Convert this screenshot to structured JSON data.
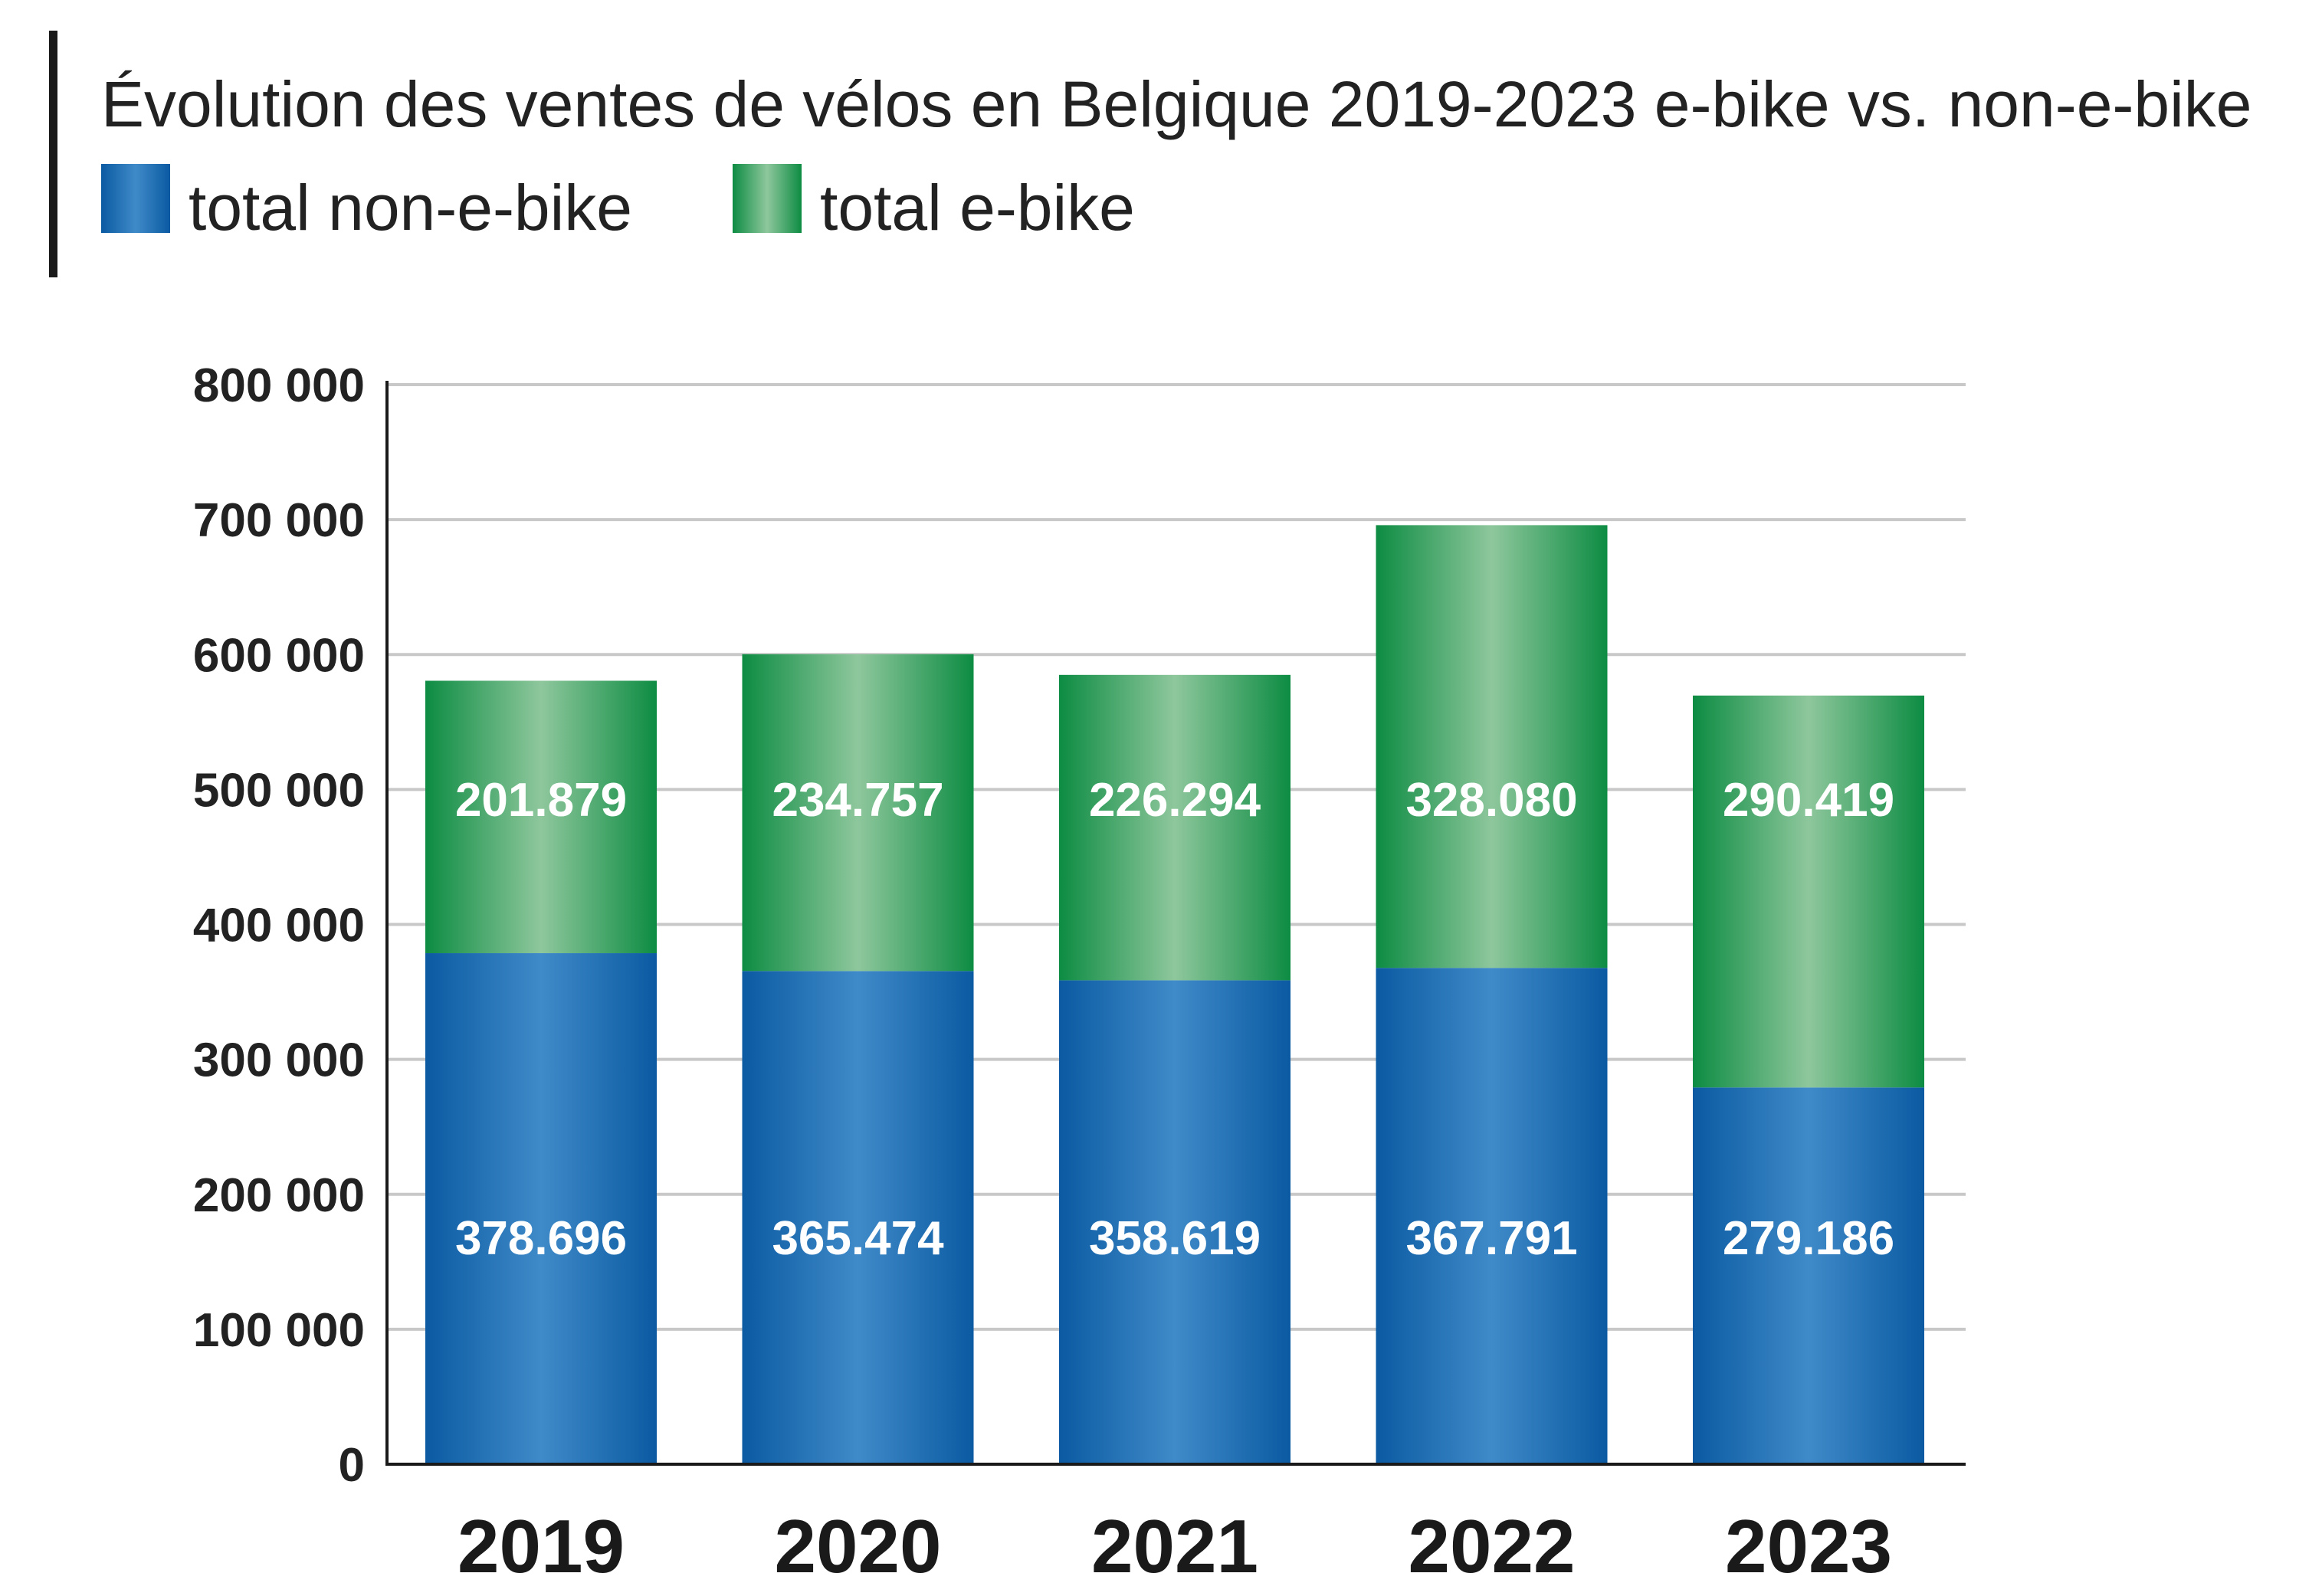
{
  "chart_data": {
    "type": "bar",
    "stacked": true,
    "title": "Évolution des ventes de vélos en Belgique 2019-2023 e-bike vs. non-e-bike",
    "xlabel": "",
    "ylabel": "",
    "categories": [
      "2019",
      "2020",
      "2021",
      "2022",
      "2023"
    ],
    "series": [
      {
        "name": "total non-e-bike",
        "values": [
          378696,
          365474,
          358619,
          367791,
          279186
        ],
        "labels": [
          "378.696",
          "365.474",
          "358.619",
          "367.791",
          "279.186"
        ],
        "color": "#1f64a8"
      },
      {
        "name": "total e-bike",
        "values": [
          201879,
          234757,
          226294,
          328080,
          290419
        ],
        "labels": [
          "201.879",
          "234.757",
          "226.294",
          "328.080",
          "290.419"
        ],
        "color": "#1a9148"
      }
    ],
    "ylim": [
      0,
      800000
    ],
    "yticks": [
      0,
      100000,
      200000,
      300000,
      400000,
      500000,
      600000,
      700000,
      800000
    ],
    "ytick_labels": [
      "0",
      "100 000",
      "200 000",
      "300 000",
      "400 000",
      "500 000",
      "600 000",
      "700 000",
      "800 000"
    ],
    "grid": true,
    "legend": "top-left"
  }
}
